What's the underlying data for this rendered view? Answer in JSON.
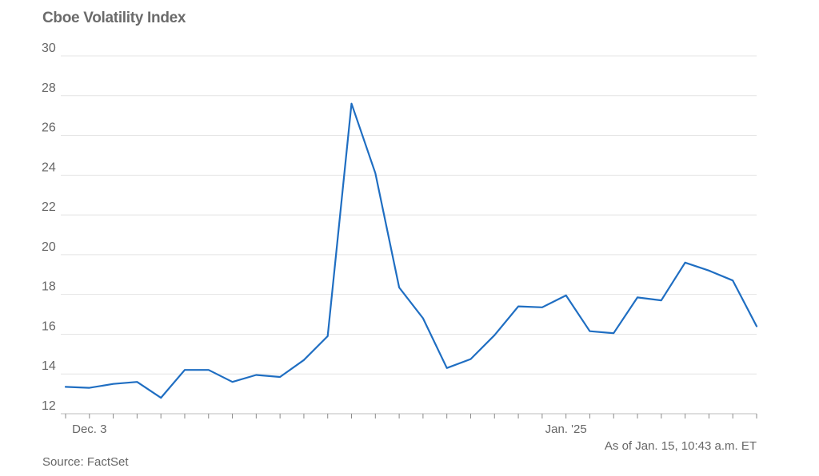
{
  "chart_data": {
    "type": "line",
    "title": "Cboe Volatility Index",
    "xlabel": "",
    "ylabel": "",
    "ylim": [
      12,
      30
    ],
    "yticks": [
      12,
      14,
      16,
      18,
      20,
      22,
      24,
      26,
      28,
      30
    ],
    "grid": true,
    "legend": "none",
    "line_color": "#1f6ec2",
    "x": [
      "2024-12-02",
      "2024-12-03",
      "2024-12-04",
      "2024-12-05",
      "2024-12-06",
      "2024-12-09",
      "2024-12-10",
      "2024-12-11",
      "2024-12-12",
      "2024-12-13",
      "2024-12-16",
      "2024-12-17",
      "2024-12-18",
      "2024-12-19",
      "2024-12-20",
      "2024-12-23",
      "2024-12-24",
      "2024-12-26",
      "2024-12-27",
      "2024-12-30",
      "2024-12-31",
      "2025-01-02",
      "2025-01-03",
      "2025-01-06",
      "2025-01-07",
      "2025-01-08",
      "2025-01-10",
      "2025-01-13",
      "2025-01-14",
      "2025-01-15"
    ],
    "x_tick_labels": [
      {
        "x": "2024-12-03",
        "label": "Dec. 3"
      },
      {
        "x": "2025-01-02",
        "label": "Jan. '25"
      }
    ],
    "series": [
      {
        "values": [
          13.35,
          13.3,
          13.5,
          13.6,
          12.8,
          14.2,
          14.2,
          13.6,
          13.95,
          13.85,
          14.7,
          15.9,
          27.6,
          24.1,
          18.35,
          16.8,
          14.3,
          14.75,
          15.95,
          17.4,
          17.35,
          17.95,
          16.15,
          16.05,
          17.85,
          17.7,
          19.6,
          19.2,
          18.7,
          16.4
        ]
      }
    ]
  },
  "footer": {
    "as_of": "As of Jan. 15, 10:43 a.m. ET",
    "source": "Source: FactSet"
  }
}
